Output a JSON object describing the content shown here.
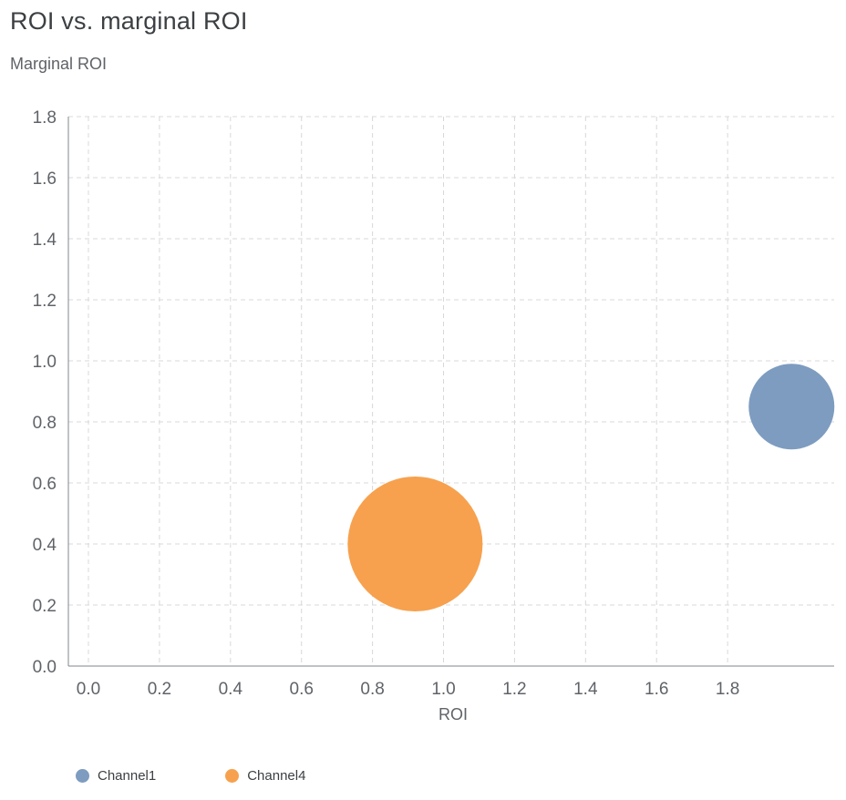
{
  "chart": {
    "title": "ROI vs. marginal ROI"
  },
  "chart_data": {
    "type": "scatter",
    "variant": "bubble",
    "title": "ROI vs. marginal ROI",
    "xlabel": "ROI",
    "ylabel": "Marginal ROI",
    "xlim": [
      0,
      2.1
    ],
    "ylim": [
      0,
      1.8
    ],
    "xticks": [
      0,
      0.2,
      0.4,
      0.6,
      0.8,
      1.0,
      1.2,
      1.4,
      1.6,
      1.8
    ],
    "yticks": [
      0,
      0.2,
      0.4,
      0.6,
      0.8,
      1.0,
      1.2,
      1.4,
      1.6,
      1.8
    ],
    "grid": "dashed",
    "legend_position": "bottom",
    "series": [
      {
        "name": "Channel1",
        "color": "#7d9cc0",
        "x": 1.98,
        "y": 0.85,
        "radius_px": 47
      },
      {
        "name": "Channel4",
        "color": "#f7a14e",
        "x": 0.92,
        "y": 0.4,
        "radius_px": 74
      }
    ]
  }
}
